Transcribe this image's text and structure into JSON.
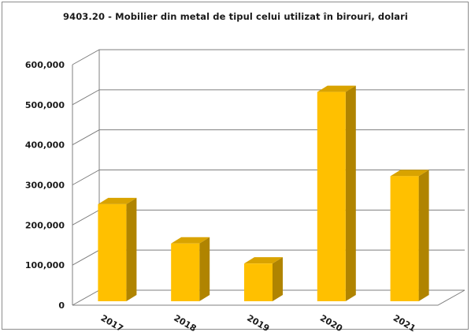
{
  "chart_data": {
    "type": "bar",
    "title": "9403.20 - Mobilier din metal de tipul celui utilizat în birouri, dolari",
    "xlabel": "",
    "ylabel": "",
    "categories": [
      "2017",
      "2018",
      "2019",
      "2020",
      "2021"
    ],
    "values": [
      248000,
      150000,
      100000,
      528000,
      318000
    ],
    "ylim": [
      0,
      600000
    ],
    "yticks": [
      "0",
      "100,000",
      "200,000",
      "300,000",
      "400,000",
      "500,000",
      "600,000"
    ],
    "grid": true,
    "legend": "none",
    "bar_color": "#FFC000",
    "bar_side_color": "#B08400",
    "bar_top_color": "#D9A300"
  }
}
